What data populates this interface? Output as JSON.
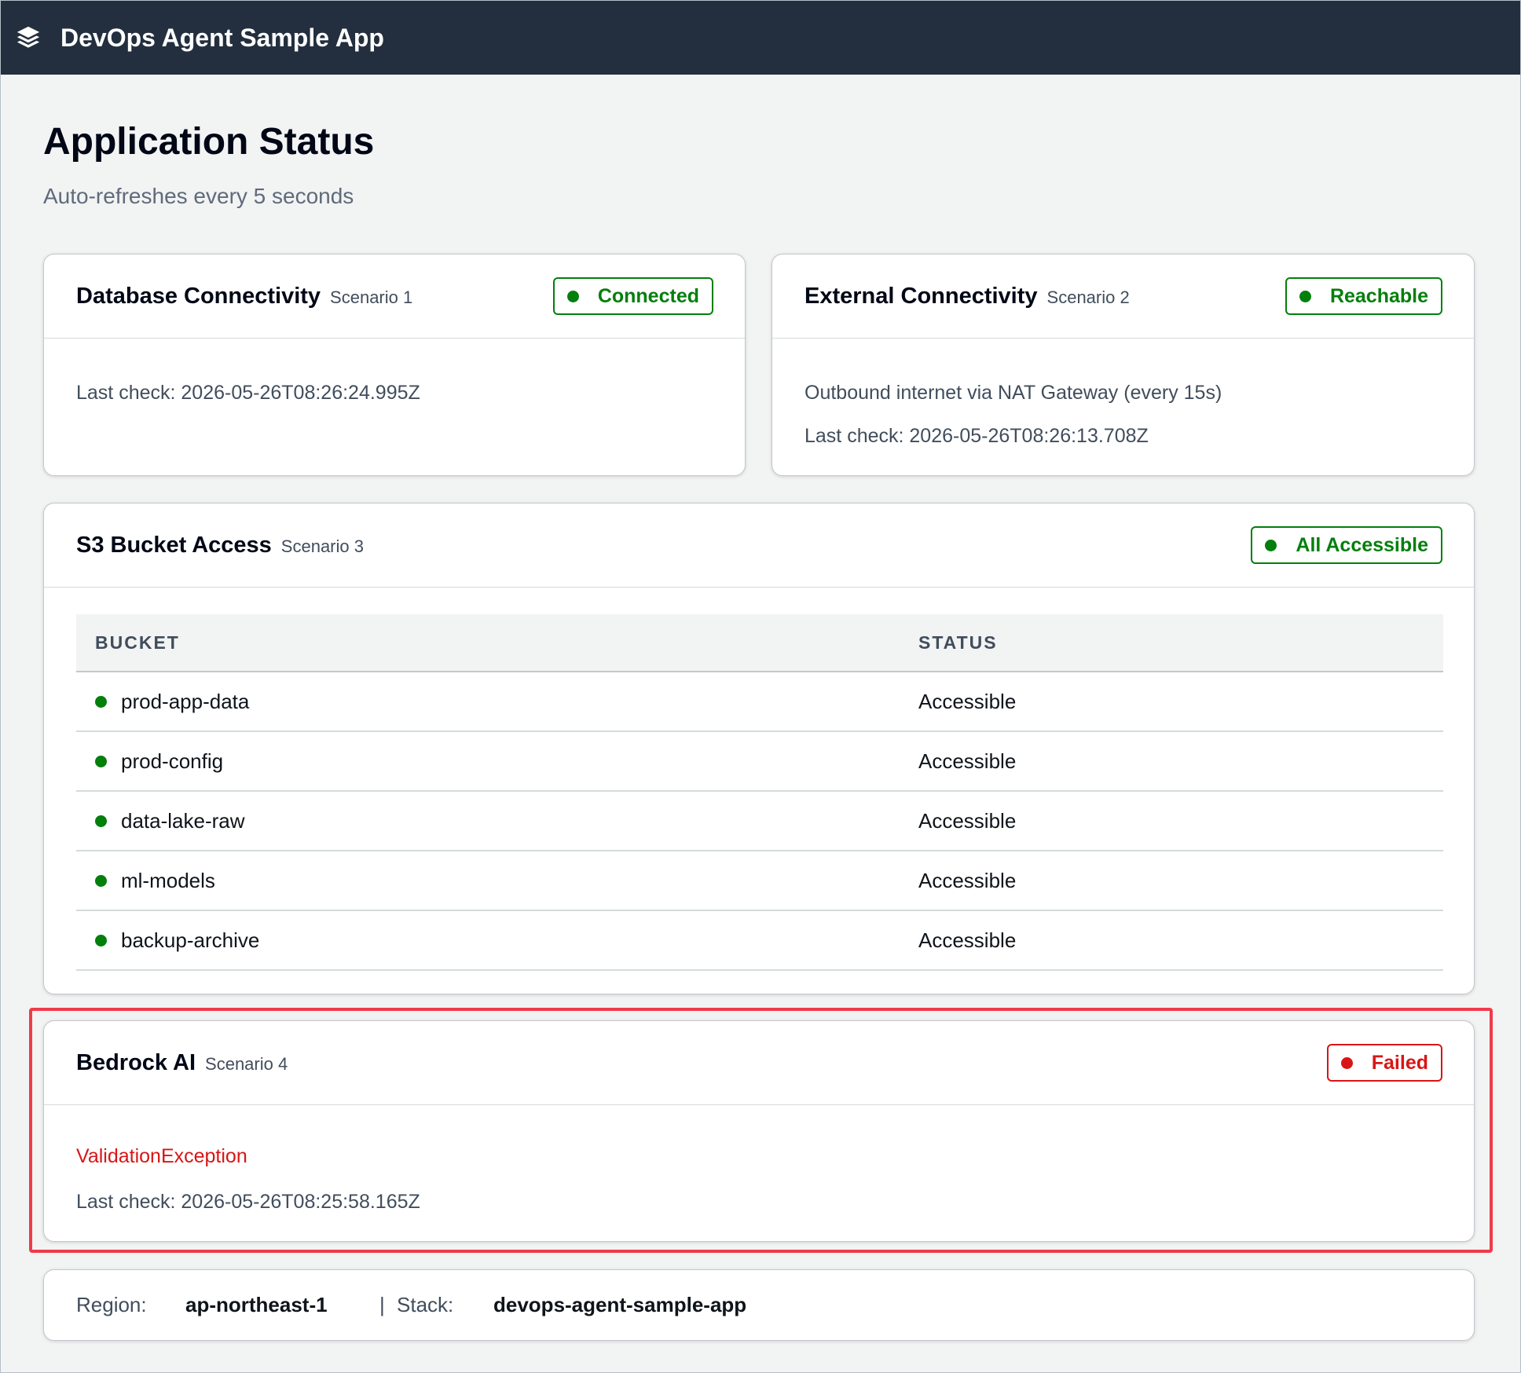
{
  "header": {
    "app_title": "DevOps Agent Sample App",
    "logo_icon": "layers-icon"
  },
  "page": {
    "title": "Application Status",
    "subtitle": "Auto-refreshes every 5 seconds"
  },
  "colors": {
    "ok": "#037f0c",
    "error": "#d91515",
    "topbar": "#232f3e",
    "highlight": "#ef3b4a"
  },
  "cards": {
    "database": {
      "title": "Database Connectivity",
      "scenario": "Scenario 1",
      "status": "Connected",
      "last_check": "Last check: 2026-05-26T08:26:24.995Z"
    },
    "external": {
      "title": "External Connectivity",
      "scenario": "Scenario 2",
      "status": "Reachable",
      "description": "Outbound internet via NAT Gateway (every 15s)",
      "last_check": "Last check: 2026-05-26T08:26:13.708Z"
    },
    "s3": {
      "title": "S3 Bucket Access",
      "scenario": "Scenario 3",
      "status": "All Accessible",
      "columns": [
        "BUCKET",
        "STATUS"
      ],
      "rows": [
        {
          "bucket": "prod-app-data",
          "status": "Accessible"
        },
        {
          "bucket": "prod-config",
          "status": "Accessible"
        },
        {
          "bucket": "data-lake-raw",
          "status": "Accessible"
        },
        {
          "bucket": "ml-models",
          "status": "Accessible"
        },
        {
          "bucket": "backup-archive",
          "status": "Accessible"
        }
      ]
    },
    "bedrock": {
      "title": "Bedrock AI",
      "scenario": "Scenario 4",
      "status": "Failed",
      "error": "ValidationException",
      "last_check": "Last check: 2026-05-26T08:25:58.165Z"
    }
  },
  "footer": {
    "region_label": "Region:",
    "region_value": "ap-northeast-1",
    "separator": "|",
    "stack_label": "Stack:",
    "stack_value": "devops-agent-sample-app"
  }
}
